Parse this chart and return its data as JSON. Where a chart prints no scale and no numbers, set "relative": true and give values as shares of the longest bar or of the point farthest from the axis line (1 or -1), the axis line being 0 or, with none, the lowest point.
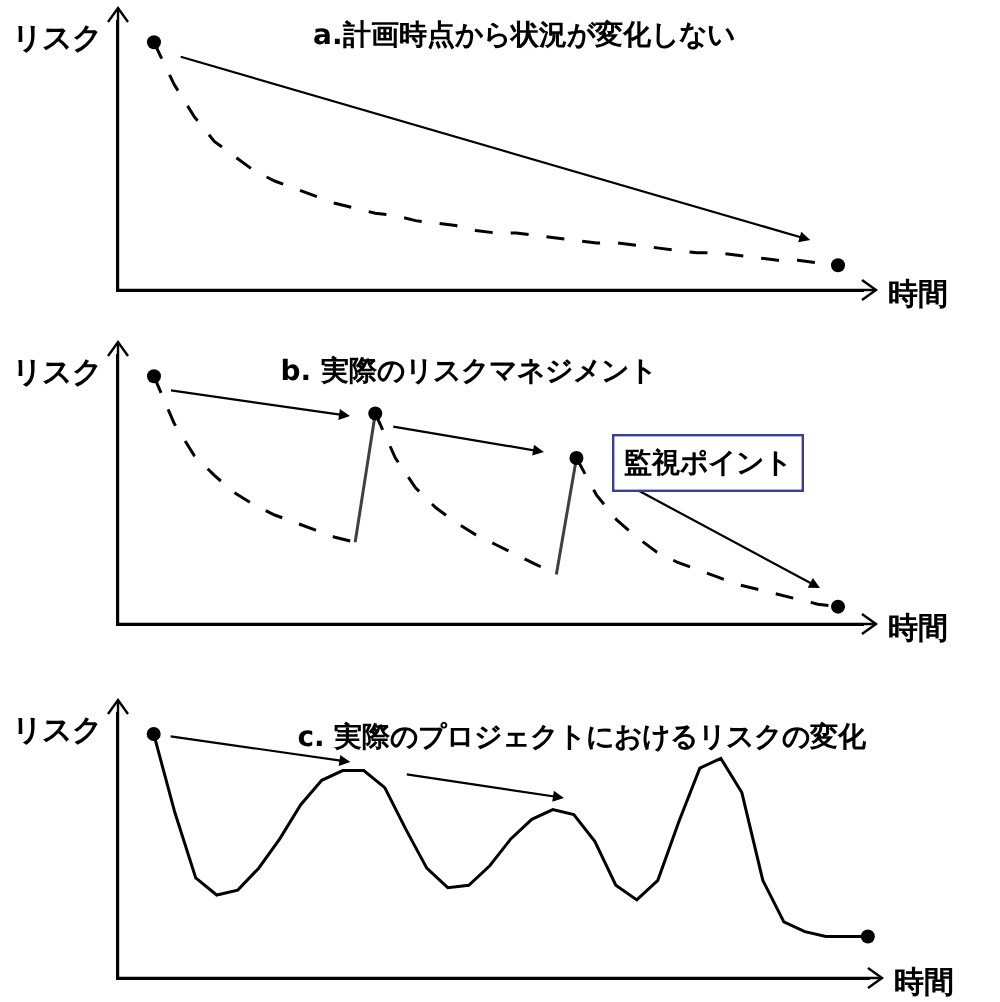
{
  "chart_data": [
    {
      "type": "line",
      "title": "a.計画時点から状況が変化しない",
      "xlabel": "時間",
      "ylabel": "リスク",
      "relative": true,
      "categories": [
        null,
        null,
        null,
        null,
        null,
        null,
        null,
        null,
        null,
        null,
        null,
        null,
        null,
        null,
        null,
        null,
        null,
        null,
        null,
        null,
        null,
        null,
        null,
        null,
        null,
        null,
        null,
        null,
        null,
        null,
        null,
        null,
        null,
        null,
        null
      ],
      "series": [
        {
          "color": "#000000",
          "line_style": "dashed",
          "values": [
            1.0,
            0.83,
            0.7,
            0.6,
            0.54,
            0.48,
            0.44,
            0.41,
            0.38,
            0.35,
            0.33,
            0.31,
            0.3,
            0.28,
            0.27,
            0.26,
            0.24,
            0.23,
            0.23,
            0.22,
            0.21,
            0.2,
            0.19,
            0.19,
            0.18,
            0.17,
            0.16,
            0.15,
            0.15,
            0.14,
            0.13,
            0.12,
            0.12,
            0.11,
            0.1
          ]
        },
        {
          "color": "#000000",
          "marker": "circle",
          "line_style": "none",
          "values": [
            1.0,
            null,
            null,
            null,
            null,
            null,
            null,
            null,
            null,
            null,
            null,
            null,
            null,
            null,
            null,
            null,
            null,
            null,
            null,
            null,
            null,
            null,
            null,
            null,
            null,
            null,
            null,
            null,
            null,
            null,
            null,
            null,
            null,
            null,
            0.1
          ]
        }
      ]
    },
    {
      "type": "line",
      "title": "b. 実際のリスクマネジメント",
      "xlabel": "時間",
      "ylabel": "リスク",
      "relative": true,
      "categories": [
        null,
        null,
        null,
        null,
        null,
        null,
        null,
        null,
        null,
        null,
        null,
        null,
        null,
        null,
        null,
        null,
        null,
        null,
        null,
        null,
        null,
        null,
        null,
        null,
        null,
        null,
        null,
        null,
        null,
        null,
        null,
        null,
        null,
        null,
        null
      ],
      "annotations": [
        "監視ポイント"
      ],
      "series": [
        {
          "color": "#000000",
          "line_style": "dashed",
          "values": [
            1.0,
            0.81,
            0.68,
            0.6,
            0.53,
            0.48,
            0.44,
            0.41,
            0.38,
            0.35,
            0.33,
            null,
            null,
            null,
            null,
            null,
            null,
            null,
            null,
            null,
            null,
            null,
            null,
            null,
            null,
            null,
            null,
            null,
            null,
            null,
            null,
            null,
            null,
            null,
            null
          ]
        },
        {
          "color": "#404040",
          "line_style": "solid",
          "values": [
            null,
            null,
            null,
            null,
            null,
            null,
            null,
            null,
            null,
            null,
            0.33,
            0.85,
            null,
            null,
            null,
            null,
            null,
            null,
            null,
            null,
            null,
            null,
            null,
            null,
            null,
            null,
            null,
            null,
            null,
            null,
            null,
            null,
            null,
            null,
            null
          ]
        },
        {
          "color": "#000000",
          "line_style": "dashed",
          "values": [
            null,
            null,
            null,
            null,
            null,
            null,
            null,
            null,
            null,
            null,
            null,
            0.85,
            0.67,
            0.55,
            0.47,
            0.41,
            0.36,
            0.32,
            0.28,
            0.24,
            0.2,
            null,
            null,
            null,
            null,
            null,
            null,
            null,
            null,
            null,
            null,
            null,
            null,
            null,
            null
          ]
        },
        {
          "color": "#404040",
          "line_style": "solid",
          "values": [
            null,
            null,
            null,
            null,
            null,
            null,
            null,
            null,
            null,
            null,
            null,
            null,
            null,
            null,
            null,
            null,
            null,
            null,
            null,
            null,
            0.2,
            0.67,
            null,
            null,
            null,
            null,
            null,
            null,
            null,
            null,
            null,
            null,
            null,
            null,
            null
          ]
        },
        {
          "color": "#000000",
          "line_style": "dashed",
          "values": [
            null,
            null,
            null,
            null,
            null,
            null,
            null,
            null,
            null,
            null,
            null,
            null,
            null,
            null,
            null,
            null,
            null,
            null,
            null,
            null,
            null,
            0.67,
            0.52,
            0.42,
            0.35,
            0.29,
            0.25,
            0.22,
            0.19,
            0.16,
            0.14,
            0.12,
            0.1,
            0.08,
            0.07
          ]
        },
        {
          "color": "#000000",
          "marker": "circle",
          "line_style": "none",
          "values": [
            1.0,
            null,
            null,
            null,
            null,
            null,
            null,
            null,
            null,
            null,
            null,
            0.85,
            null,
            null,
            null,
            null,
            null,
            null,
            null,
            null,
            null,
            0.67,
            null,
            null,
            null,
            null,
            null,
            null,
            null,
            null,
            null,
            null,
            null,
            null,
            0.07
          ]
        }
      ]
    },
    {
      "type": "line",
      "title": "c. 実際のプロジェクトにおけるリスクの変化",
      "xlabel": "時間",
      "ylabel": "リスク",
      "relative": true,
      "categories": [
        null,
        null,
        null,
        null,
        null,
        null,
        null,
        null,
        null,
        null,
        null,
        null,
        null,
        null,
        null,
        null,
        null,
        null,
        null,
        null,
        null,
        null,
        null,
        null,
        null,
        null,
        null,
        null,
        null,
        null,
        null,
        null,
        null,
        null,
        null
      ],
      "series": [
        {
          "color": "#000000",
          "line_style": "solid",
          "values": [
            1.0,
            0.68,
            0.41,
            0.34,
            0.36,
            0.45,
            0.57,
            0.71,
            0.81,
            0.85,
            0.85,
            0.78,
            0.61,
            0.45,
            0.37,
            0.38,
            0.46,
            0.57,
            0.65,
            0.69,
            0.67,
            0.56,
            0.38,
            0.32,
            0.4,
            0.64,
            0.86,
            0.9,
            0.76,
            0.4,
            0.23,
            0.19,
            0.17,
            0.17,
            0.17
          ]
        },
        {
          "color": "#000000",
          "marker": "circle",
          "line_style": "none",
          "values": [
            1.0,
            null,
            null,
            null,
            null,
            null,
            null,
            null,
            null,
            null,
            null,
            null,
            null,
            null,
            null,
            null,
            null,
            null,
            null,
            null,
            null,
            null,
            null,
            null,
            null,
            null,
            null,
            null,
            null,
            null,
            null,
            null,
            null,
            null,
            0.17
          ]
        }
      ]
    }
  ]
}
